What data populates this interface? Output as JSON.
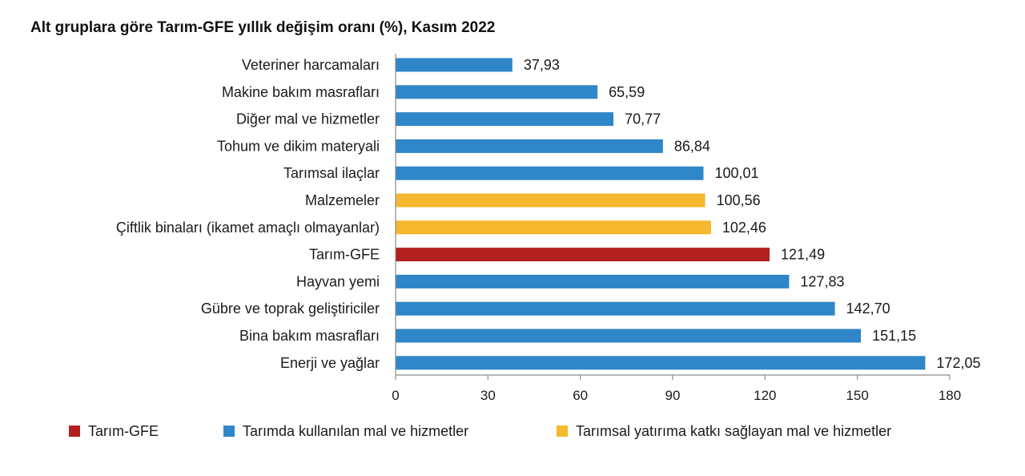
{
  "chart_data": {
    "type": "bar",
    "orientation": "horizontal",
    "title": "Alt gruplara göre Tarım-GFE yıllık değişim oranı (%), Kasım 2022",
    "xlim": [
      0,
      180
    ],
    "xticks": [
      0,
      30,
      60,
      90,
      120,
      150,
      180
    ],
    "grid": false,
    "legend_position": "bottom",
    "colors": {
      "Tarım-GFE": "#b21f1f",
      "Tarımda kullanılan mal ve hizmetler": "#2f86c8",
      "Tarımsal yatırıma katkı sağlayan mal ve hizmetler": "#f5b82e"
    },
    "categories": [
      "Veteriner harcamaları",
      "Makine bakım masrafları",
      "Diğer mal ve hizmetler",
      "Tohum ve dikim materyali",
      "Tarımsal ilaçlar",
      "Malzemeler",
      "Çiftlik binaları (ikamet amaçlı olmayanlar)",
      "Tarım-GFE",
      "Hayvan yemi",
      "Gübre ve toprak geliştiriciler",
      "Bina bakım masrafları",
      "Enerji ve yağlar"
    ],
    "values": [
      37.93,
      65.59,
      70.77,
      86.84,
      100.01,
      100.56,
      102.46,
      121.49,
      127.83,
      142.7,
      151.15,
      172.05
    ],
    "value_labels": [
      "37,93",
      "65,59",
      "70,77",
      "86,84",
      "100,01",
      "100,56",
      "102,46",
      "121,49",
      "127,83",
      "142,70",
      "151,15",
      "172,05"
    ],
    "groups": [
      "Tarımda kullanılan mal ve hizmetler",
      "Tarımda kullanılan mal ve hizmetler",
      "Tarımda kullanılan mal ve hizmetler",
      "Tarımda kullanılan mal ve hizmetler",
      "Tarımda kullanılan mal ve hizmetler",
      "Tarımsal yatırıma katkı sağlayan mal ve hizmetler",
      "Tarımsal yatırıma katkı sağlayan mal ve hizmetler",
      "Tarım-GFE",
      "Tarımda kullanılan mal ve hizmetler",
      "Tarımda kullanılan mal ve hizmetler",
      "Tarımda kullanılan mal ve hizmetler",
      "Tarımda kullanılan mal ve hizmetler"
    ],
    "legend": [
      "Tarım-GFE",
      "Tarımda kullanılan mal ve hizmetler",
      "Tarımsal yatırıma katkı sağlayan mal ve hizmetler"
    ]
  }
}
